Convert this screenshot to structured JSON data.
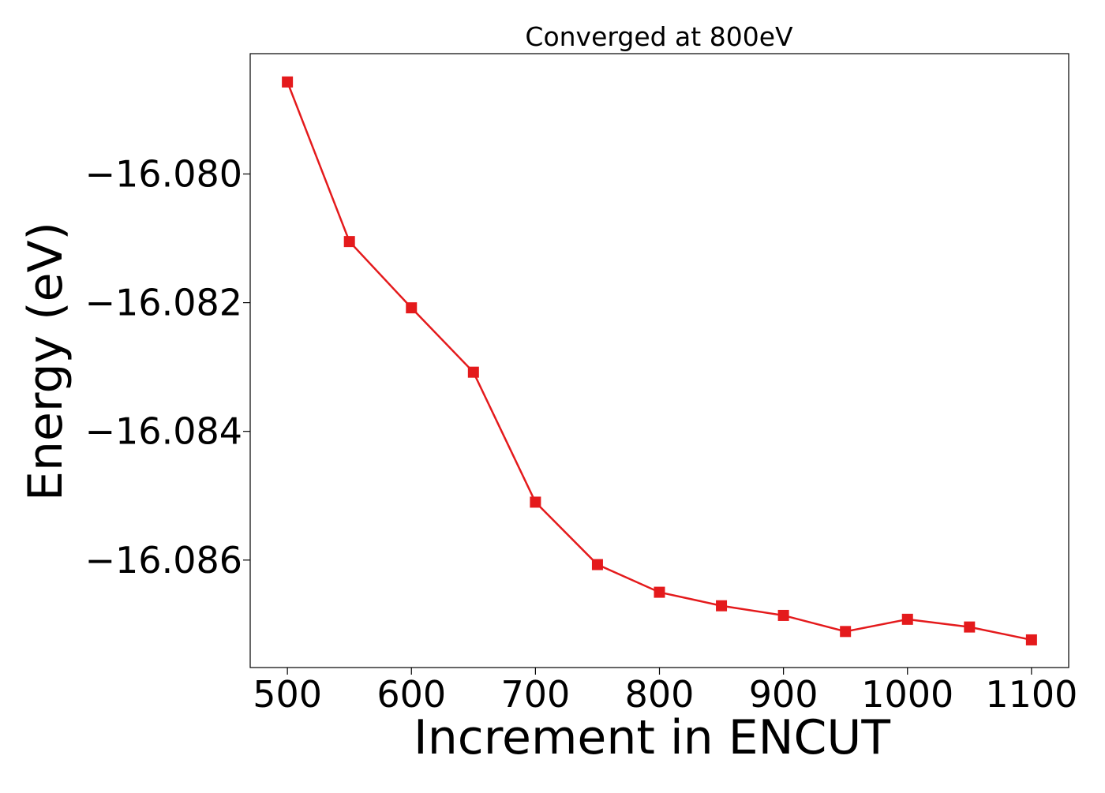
{
  "chart_data": {
    "type": "line",
    "title": "Converged at 800eV",
    "xlabel": "Increment in ENCUT",
    "ylabel": "Energy (eV)",
    "xlim": [
      470,
      1130
    ],
    "ylim": [
      -16.08767,
      -16.07813
    ],
    "x_ticks": [
      500,
      600,
      700,
      800,
      900,
      1000,
      1100
    ],
    "x_tick_labels": [
      "500",
      "600",
      "700",
      "800",
      "900",
      "1000",
      "1100"
    ],
    "y_ticks": [
      -16.08,
      -16.082,
      -16.084,
      -16.086
    ],
    "y_tick_labels": [
      "−16.080",
      "−16.082",
      "−16.084",
      "−16.086"
    ],
    "grid": false,
    "legend": "none",
    "series": [
      {
        "color": "#e41a1c",
        "marker": "square",
        "x": [
          500,
          550,
          600,
          650,
          700,
          750,
          800,
          850,
          900,
          950,
          1000,
          1050,
          1100
        ],
        "y": [
          -16.07857,
          -16.08105,
          -16.08208,
          -16.08308,
          -16.0851,
          -16.08607,
          -16.0865,
          -16.08671,
          -16.08686,
          -16.08711,
          -16.08692,
          -16.08704,
          -16.08724
        ]
      }
    ]
  }
}
